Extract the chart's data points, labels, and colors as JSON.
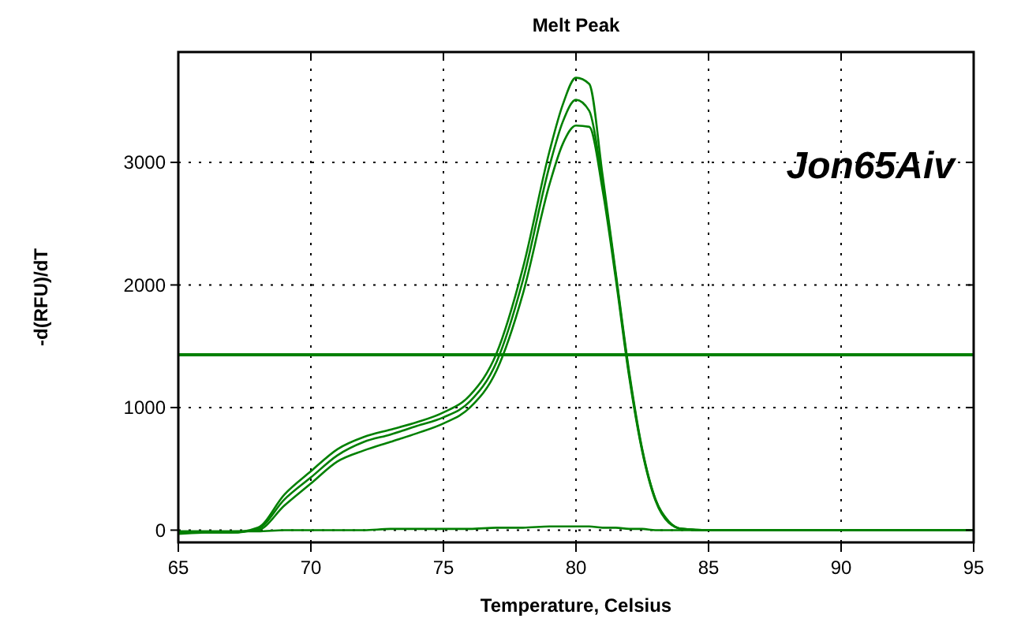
{
  "chart_data": {
    "type": "line",
    "title": "Melt Peak",
    "xlabel": "Temperature, Celsius",
    "ylabel": "-d(RFU)/dT",
    "xlim": [
      65,
      95
    ],
    "ylim": [
      -100,
      3900
    ],
    "xticks": [
      65,
      70,
      75,
      80,
      85,
      90,
      95
    ],
    "yticks": [
      0,
      1000,
      2000,
      3000
    ],
    "grid": true,
    "marker": "none",
    "line_style": "solid",
    "x": [
      65,
      66,
      67,
      68,
      69,
      70,
      71,
      72,
      73,
      74,
      75,
      76,
      77,
      78,
      79,
      79.5,
      80,
      80.5,
      81,
      81.5,
      82,
      82.5,
      83,
      83.5,
      84,
      85,
      90,
      95
    ],
    "series": [
      {
        "color": "#008000",
        "values": [
          -30,
          -20,
          -20,
          20,
          290,
          480,
          660,
          760,
          820,
          880,
          960,
          1100,
          1440,
          2140,
          3090,
          3470,
          3690,
          3640,
          2900,
          2100,
          1300,
          660,
          250,
          70,
          10,
          0,
          0,
          0
        ]
      },
      {
        "color": "#008000",
        "values": [
          -20,
          -20,
          -20,
          10,
          250,
          430,
          610,
          720,
          780,
          850,
          920,
          1050,
          1370,
          2040,
          2970,
          3330,
          3510,
          3420,
          2840,
          2080,
          1280,
          650,
          250,
          70,
          10,
          0,
          0,
          0
        ]
      },
      {
        "color": "#008000",
        "values": [
          -10,
          -10,
          -10,
          0,
          200,
          380,
          560,
          650,
          720,
          790,
          870,
          1000,
          1300,
          1930,
          2820,
          3150,
          3300,
          3290,
          2780,
          2050,
          1260,
          640,
          240,
          60,
          10,
          0,
          0,
          0
        ]
      },
      {
        "color": "#008000",
        "values": [
          -10,
          -10,
          -10,
          -10,
          0,
          0,
          0,
          0,
          10,
          10,
          10,
          10,
          20,
          20,
          30,
          30,
          30,
          30,
          20,
          20,
          10,
          10,
          0,
          0,
          0,
          0,
          0,
          0
        ]
      }
    ],
    "ref_lines": [
      {
        "axis": "y",
        "value": 1430,
        "color": "#008000"
      }
    ],
    "annotations": [
      "Jon65Aiv"
    ]
  }
}
